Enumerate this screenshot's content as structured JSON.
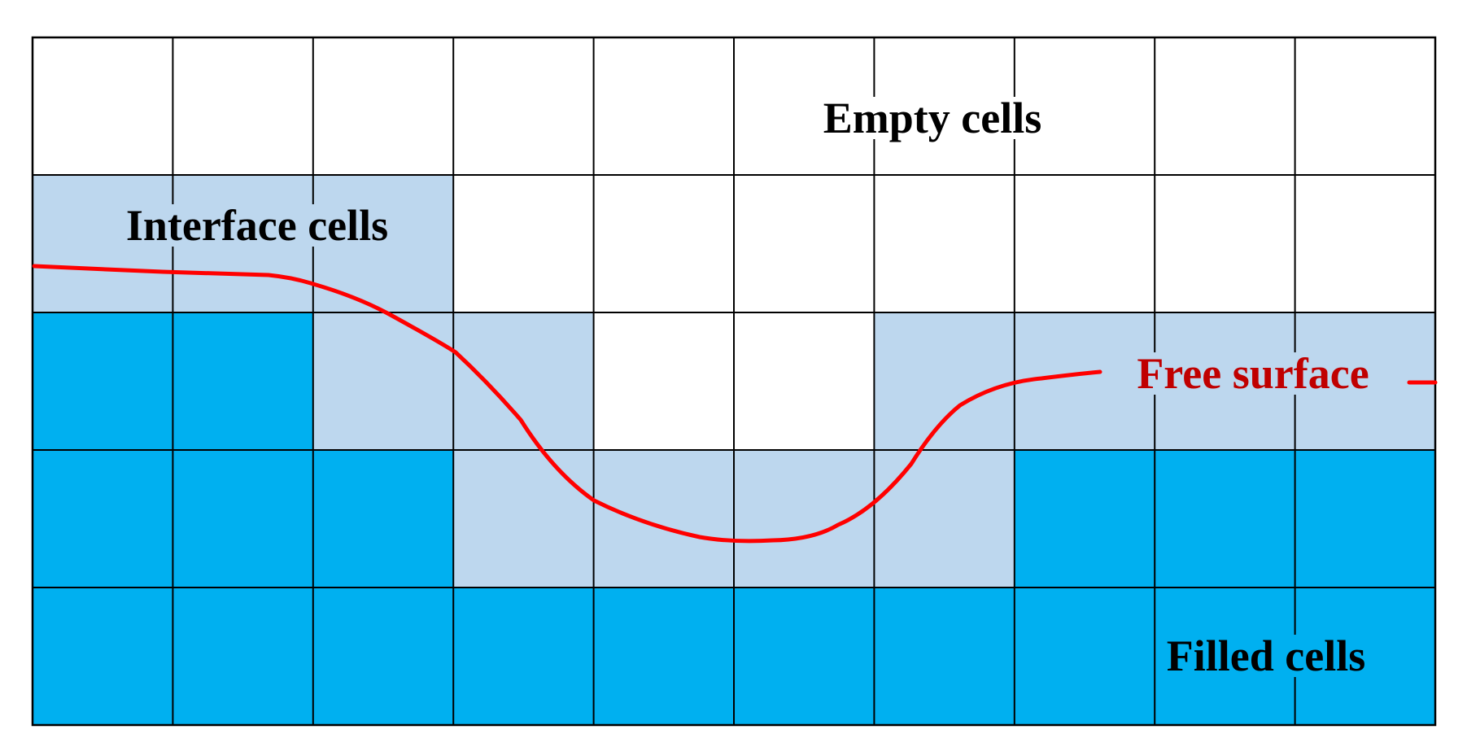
{
  "grid": {
    "rows": 5,
    "cols": 10,
    "cells": [
      [
        "empty",
        "empty",
        "empty",
        "empty",
        "empty",
        "empty",
        "empty",
        "empty",
        "empty",
        "empty"
      ],
      [
        "interface",
        "interface",
        "interface",
        "empty",
        "empty",
        "empty",
        "empty",
        "empty",
        "empty",
        "empty"
      ],
      [
        "filled",
        "filled",
        "interface",
        "interface",
        "empty",
        "empty",
        "interface",
        "interface",
        "interface",
        "interface"
      ],
      [
        "filled",
        "filled",
        "filled",
        "interface",
        "interface",
        "interface",
        "interface",
        "filled",
        "filled",
        "filled"
      ],
      [
        "filled",
        "filled",
        "filled",
        "filled",
        "filled",
        "filled",
        "filled",
        "filled",
        "filled",
        "filled"
      ]
    ]
  },
  "colors": {
    "empty": "#ffffff",
    "interface": "#bdd7ee",
    "filled": "#00b0f0",
    "grid_line": "#000000",
    "free_surface": "#ff0000",
    "free_surface_label": "#c00000",
    "label": "#000000"
  },
  "labels": {
    "empty": "Empty cells",
    "interface": "Interface cells",
    "filled": "Filled cells",
    "free_surface": "Free surface"
  }
}
